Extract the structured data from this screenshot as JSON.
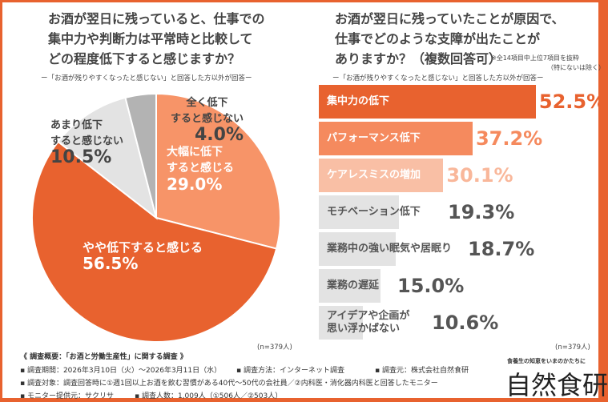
{
  "left": {
    "question": "お酒が翌日に残っていると、仕事での\n集中力や判断力は平常時と比較して\nどの程度低下すると感じますか？",
    "note": "ー「お酒が残りやすくなったと感じない」と回答した方以外が回答ー",
    "n": "(n=379人)"
  },
  "right": {
    "question": "お酒が翌日に残っていたことが原因で、\n仕事でどのような支障が出たことが\nありますか？（複数回答可）",
    "aside1": "※全14項目中上位7項目を抜粋",
    "aside2": "（特にないは除く）",
    "note": "ー「お酒が残りやすくなったと感じない」と回答した方以外が回答ー",
    "n": "(n=379人)"
  },
  "chart_data": [
    {
      "type": "pie",
      "categories": [
        "大幅に低下すると感じる",
        "やや低下すると感じる",
        "あまり低下すると感じない",
        "全く低下すると感じない"
      ],
      "labels": [
        "大幅に低下\nすると感じる",
        "やや低下すると感じる",
        "あまり低下\nすると感じない",
        "全く低下\nすると感じない"
      ],
      "values": [
        29.0,
        56.5,
        10.5,
        4.0
      ],
      "value_labels": [
        "29.0%",
        "56.5%",
        "10.5%",
        "4.0%"
      ],
      "colors": [
        "#f79468",
        "#e8622f",
        "#e3e3e3",
        "#b3b3b3"
      ]
    },
    {
      "type": "bar",
      "orientation": "horizontal",
      "categories": [
        "集中力の低下",
        "パフォーマンス低下",
        "ケアレスミスの増加",
        "モチベーション低下",
        "業務中の強い眠気や居眠り",
        "業務の遅延",
        "アイデアや企画が\n思い浮かばない"
      ],
      "values": [
        52.5,
        37.2,
        30.1,
        19.3,
        18.7,
        15.0,
        10.6
      ],
      "value_labels": [
        "52.5%",
        "37.2%",
        "30.1%",
        "19.3%",
        "18.7%",
        "15.0%",
        "10.6%"
      ],
      "colors": [
        "#e8622f",
        "#f58a5e",
        "#f9bfa5",
        "#e3e3e3",
        "#e3e3e3",
        "#e3e3e3",
        "#e3e3e3"
      ],
      "value_colors": [
        "#e8622f",
        "#f58a5e",
        "#f9b79a",
        "#555555",
        "#555555",
        "#555555",
        "#555555"
      ]
    }
  ],
  "footer": {
    "title": "《 調査概要：「お酒と労働生産性」に関する調査 》",
    "period": "▪ 調査期間：2026年3月10日（火）～2026年3月11日（水）",
    "method": "▪ 調査方法：インターネット調査",
    "source": "▪ 調査元：株式会社自然食研",
    "target": "▪ 調査対象：調査回答時に①週1回以上お酒を飲む習慣がある40代～50代の会社員／②内科医・消化器内科医と回答したモニター",
    "provider": "▪ モニター提供元：サクリサ",
    "count": "▪ 調査人数：1,009人（①506人／②503人）"
  },
  "logo": {
    "tagline": "食養生の知恵をいまのかたちに",
    "name": "自然食研"
  }
}
